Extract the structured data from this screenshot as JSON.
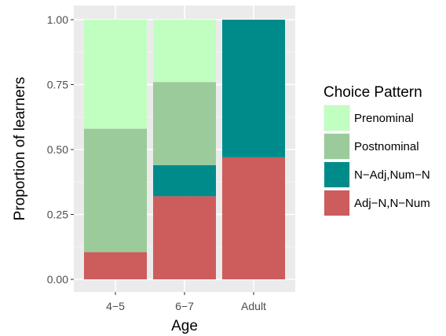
{
  "chart_data": {
    "type": "bar",
    "stacked": true,
    "categories": [
      "4−5",
      "6−7",
      "Adult"
    ],
    "series": [
      {
        "name": "Adj−N,N−Num",
        "color": "#cd5c5c",
        "values": [
          0.105,
          0.32,
          0.47
        ]
      },
      {
        "name": "N−Adj,Num−N",
        "color": "#008b8b",
        "values": [
          0.0,
          0.12,
          0.53
        ]
      },
      {
        "name": "Postnominal",
        "color": "#9bcb9b",
        "values": [
          0.475,
          0.32,
          0.0
        ]
      },
      {
        "name": "Prenominal",
        "color": "#c1ffc1",
        "values": [
          0.42,
          0.24,
          0.0
        ]
      }
    ],
    "legend_order": [
      "Prenominal",
      "Postnominal",
      "N−Adj,Num−N",
      "Adj−N,N−Num"
    ],
    "xlabel": "Age",
    "ylabel": "Proportion of learners",
    "ylim": [
      0,
      1
    ],
    "yticks": [
      0,
      0.25,
      0.5,
      0.75,
      1
    ],
    "ytick_labels": [
      "0.00",
      "0.25",
      "0.50",
      "0.75",
      "1.00"
    ],
    "grid": true,
    "panel_background": "#ebebeb",
    "legend": {
      "title": "Choice Pattern",
      "position": "right"
    }
  }
}
